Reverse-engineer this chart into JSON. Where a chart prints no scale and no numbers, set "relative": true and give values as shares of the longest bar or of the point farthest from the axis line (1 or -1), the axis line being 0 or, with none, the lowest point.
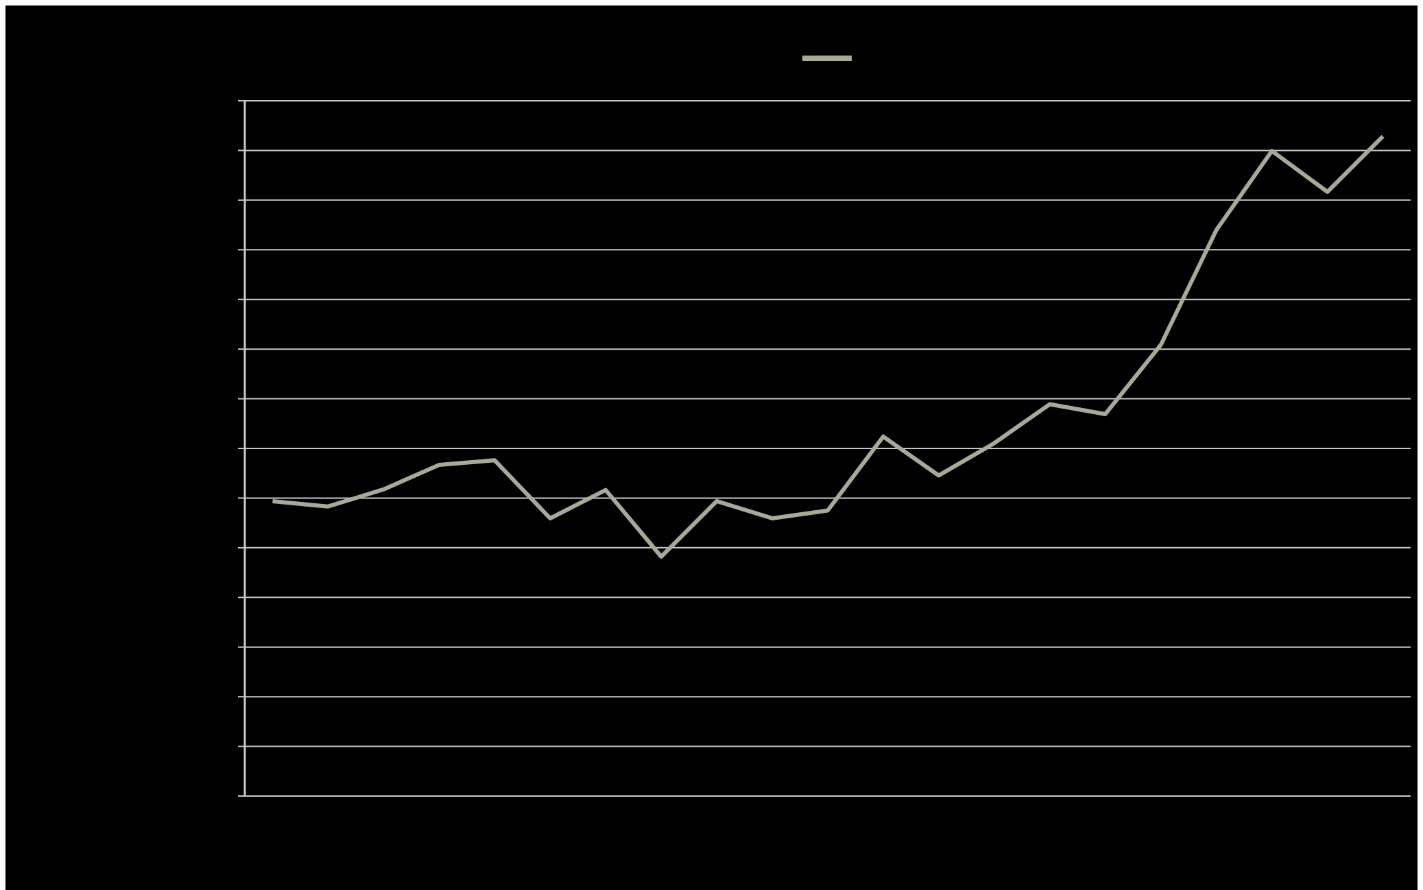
{
  "chart_data": {
    "type": "line",
    "relative": true,
    "categories": [
      null,
      null,
      null,
      null,
      null,
      null,
      null,
      null,
      null,
      null,
      null,
      null,
      null,
      null,
      null,
      null,
      null,
      null,
      null,
      null,
      null
    ],
    "series": [
      {
        "color": "#a8aa98",
        "values": [
          0.447,
          0.439,
          0.465,
          0.502,
          0.509,
          0.421,
          0.464,
          0.363,
          0.447,
          0.421,
          0.433,
          0.545,
          0.486,
          0.535,
          0.594,
          0.579,
          0.684,
          0.858,
          0.978,
          0.916,
          1
        ]
      }
    ],
    "grid": "y",
    "marker": "none",
    "line_style": "solid"
  }
}
